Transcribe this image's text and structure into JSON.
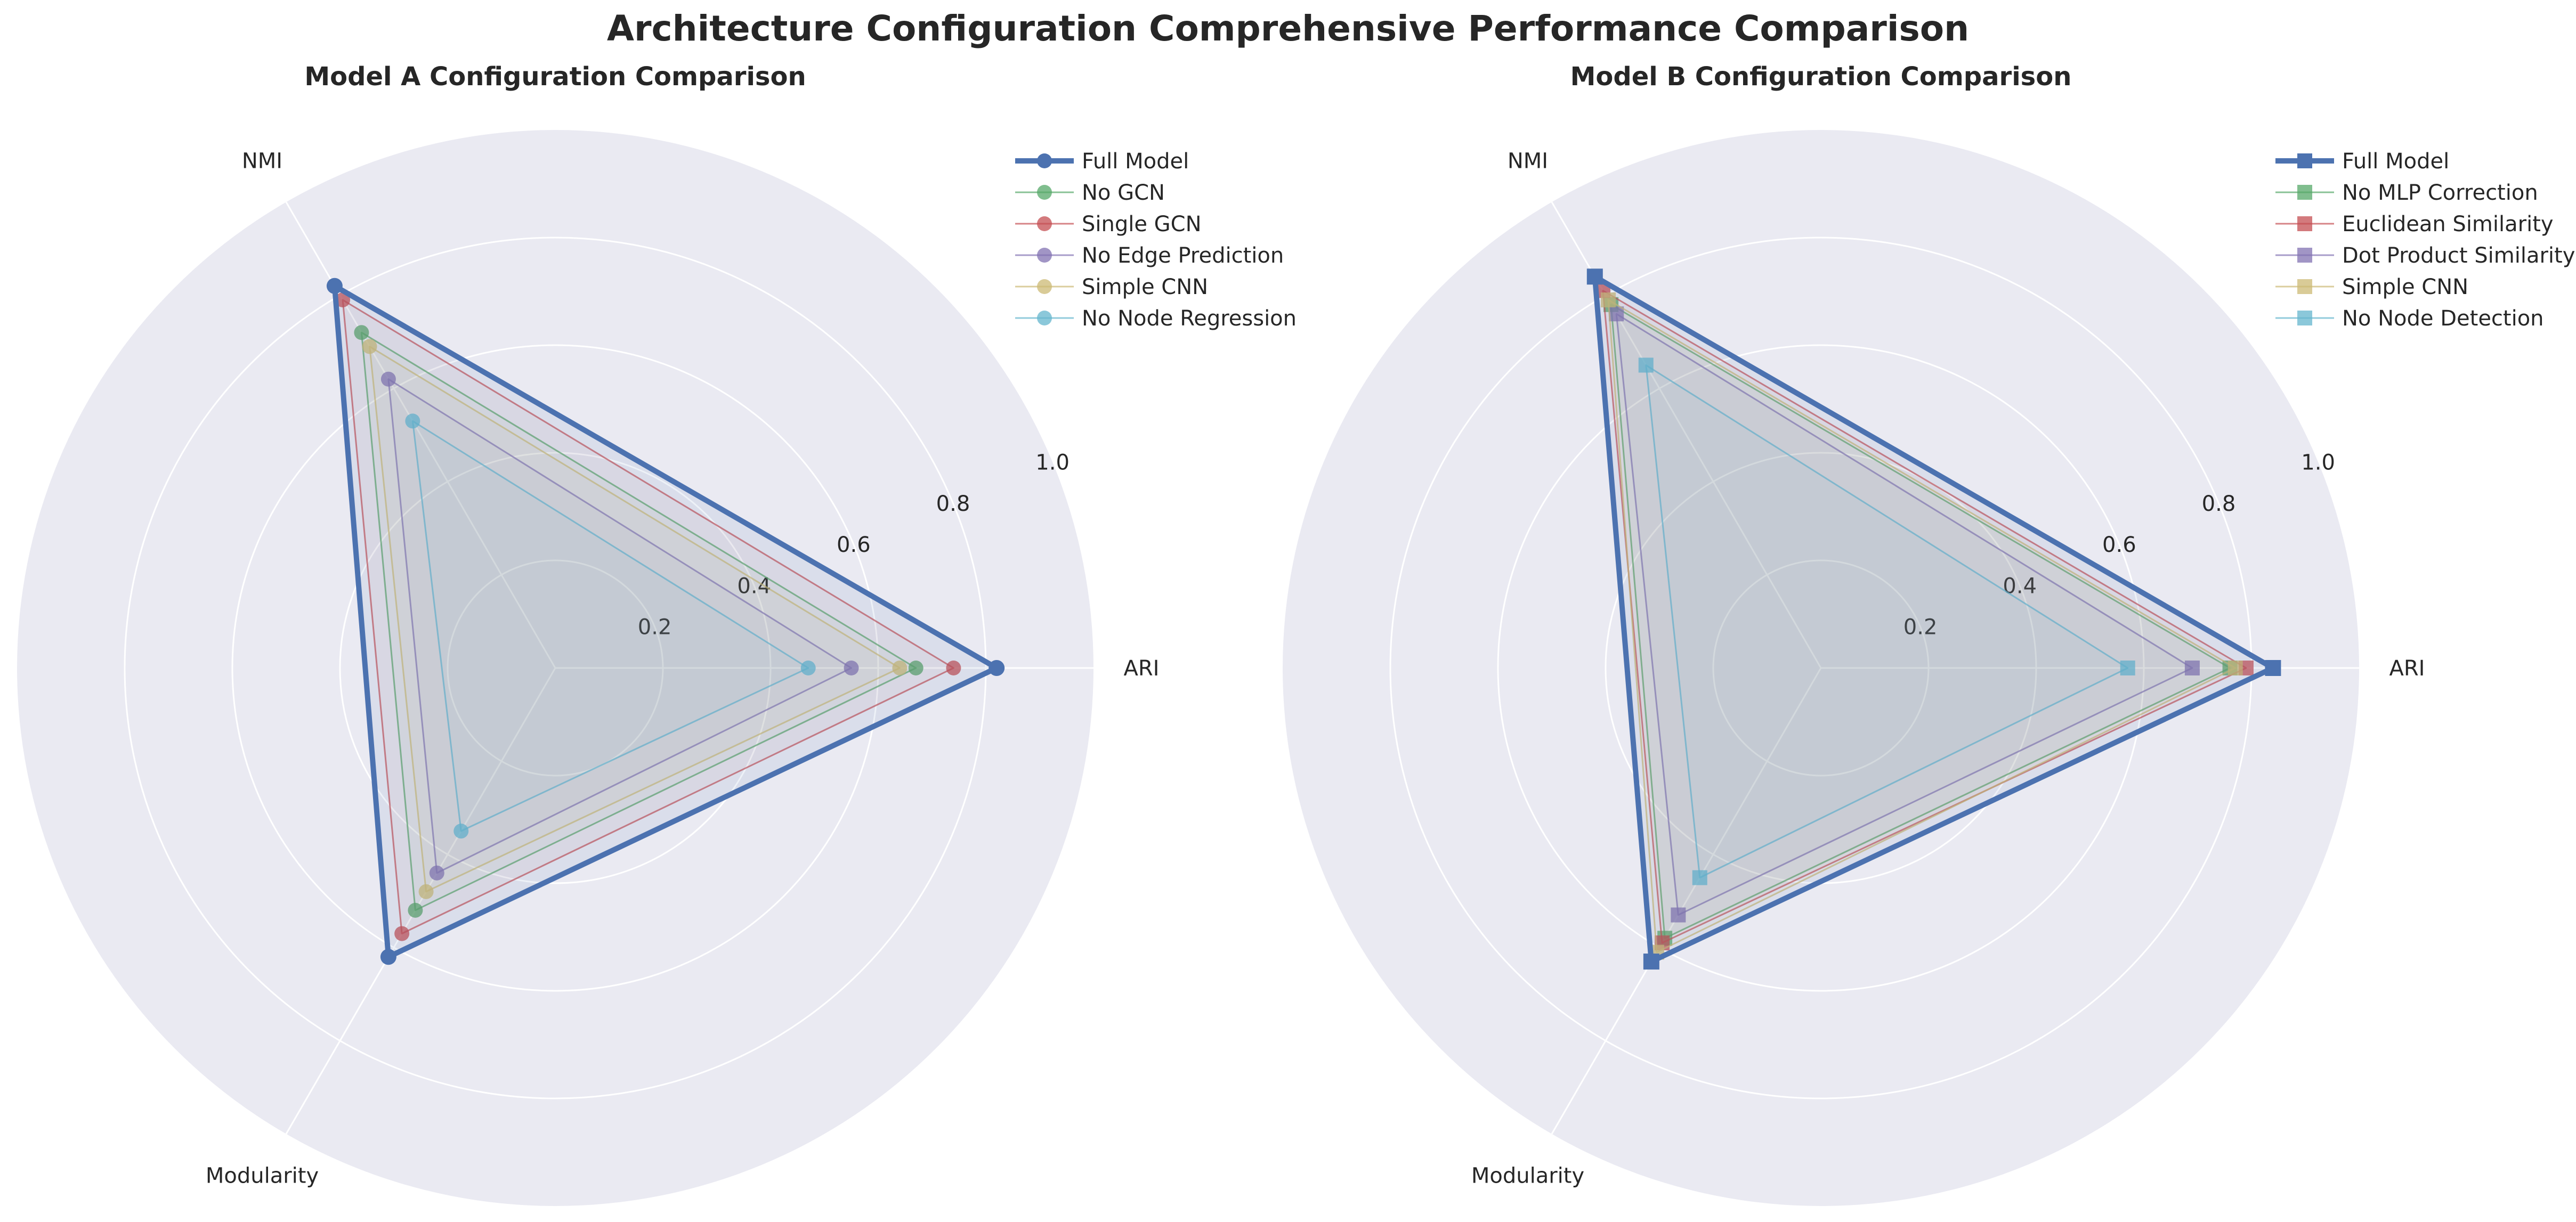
{
  "title": "Architecture Configuration Comprehensive Performance Comparison",
  "colors": {
    "background": "#EAEAF2",
    "grid": "#FFFFFF",
    "blue": "#4C72B0",
    "green": "#55A868",
    "red": "#C44E52",
    "purple": "#8172B2",
    "yellow": "#CCB974",
    "cyan": "#64B5CD"
  },
  "chart_data": [
    {
      "type": "radar",
      "title": "Model A Configuration Comparison",
      "axes": [
        "ARI",
        "NMI",
        "Modularity"
      ],
      "rlim": [
        0,
        1.0
      ],
      "rticks": [
        "0.2",
        "0.4",
        "0.6",
        "0.8",
        "1.0"
      ],
      "grid": true,
      "legend_position": "top-right",
      "marker": "circle",
      "series": [
        {
          "name": "Full Model",
          "values": [
            0.82,
            0.82,
            0.62
          ],
          "color": "#4C72B0",
          "emphasis": true
        },
        {
          "name": "No GCN",
          "values": [
            0.67,
            0.72,
            0.52
          ],
          "color": "#55A868"
        },
        {
          "name": "Single GCN",
          "values": [
            0.74,
            0.79,
            0.57
          ],
          "color": "#C44E52"
        },
        {
          "name": "No Edge Prediction",
          "values": [
            0.55,
            0.62,
            0.44
          ],
          "color": "#8172B2"
        },
        {
          "name": "Simple CNN",
          "values": [
            0.64,
            0.69,
            0.48
          ],
          "color": "#CCB974"
        },
        {
          "name": "No Node Regression",
          "values": [
            0.47,
            0.53,
            0.35
          ],
          "color": "#64B5CD"
        }
      ]
    },
    {
      "type": "radar",
      "title": "Model B Configuration Comparison",
      "axes": [
        "ARI",
        "NMI",
        "Modularity"
      ],
      "rlim": [
        0,
        1.0
      ],
      "rticks": [
        "0.2",
        "0.4",
        "0.6",
        "0.8",
        "1.0"
      ],
      "grid": true,
      "legend_position": "top-right",
      "marker": "square",
      "series": [
        {
          "name": "Full Model",
          "values": [
            0.84,
            0.84,
            0.63
          ],
          "color": "#4C72B0",
          "emphasis": true
        },
        {
          "name": "No MLP Correction",
          "values": [
            0.76,
            0.78,
            0.58
          ],
          "color": "#55A868"
        },
        {
          "name": "Euclidean Similarity",
          "values": [
            0.79,
            0.81,
            0.59
          ],
          "color": "#C44E52"
        },
        {
          "name": "Dot Product Similarity",
          "values": [
            0.69,
            0.76,
            0.53
          ],
          "color": "#8172B2"
        },
        {
          "name": "Simple CNN",
          "values": [
            0.77,
            0.79,
            0.61
          ],
          "color": "#CCB974"
        },
        {
          "name": "No Node Detection",
          "values": [
            0.57,
            0.65,
            0.45
          ],
          "color": "#64B5CD"
        }
      ]
    }
  ]
}
